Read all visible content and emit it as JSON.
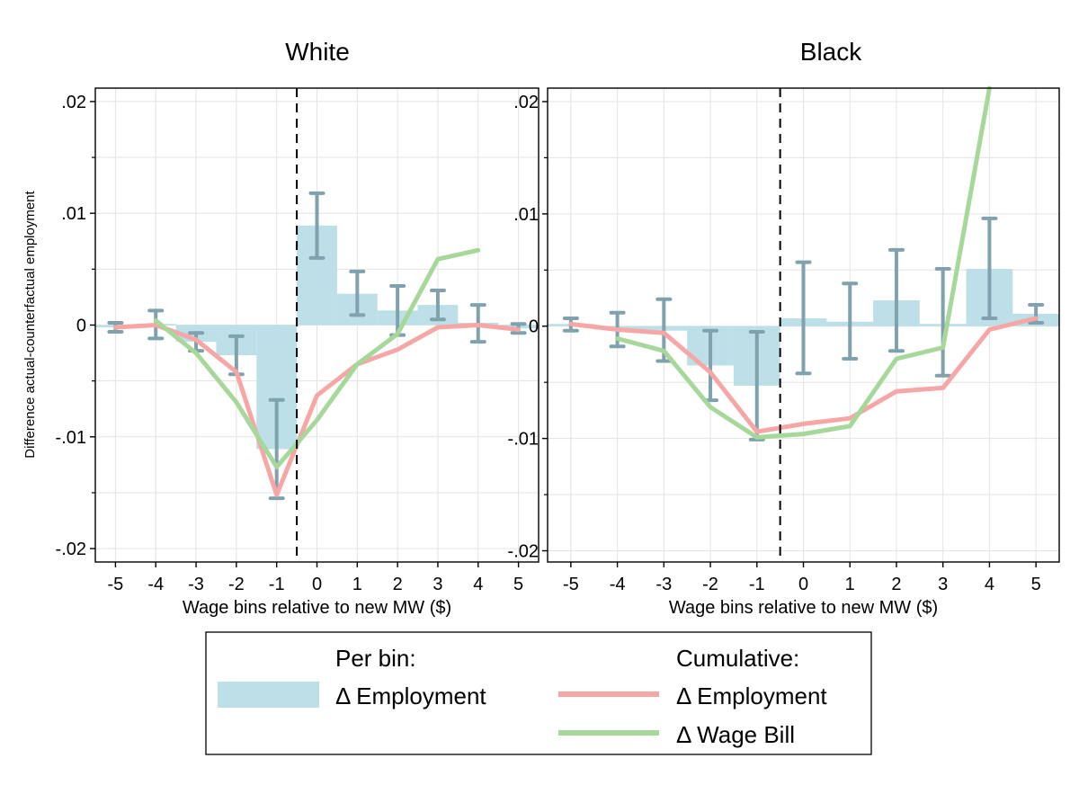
{
  "ylabel": "Difference actual-counterfactual employment",
  "colors": {
    "bar": "#bcdfe8",
    "ci": "#7fa2ae",
    "employment_line": "#f7a6a6",
    "wagebill_line": "#a6d89a",
    "grid": "#e3e3e3"
  },
  "legend": {
    "per_bin_title": "Per bin:",
    "per_bin_label": "Δ Employment",
    "cumulative_title": "Cumulative:",
    "cum_employment_label": "Δ Employment",
    "cum_wagebill_label": "Δ Wage Bill"
  },
  "chart_data": [
    {
      "type": "bar",
      "title": "White",
      "xlabel": "Wage bins relative to new MW ($)",
      "ylabel": "Difference actual-counterfactual employment",
      "x_ticks": [
        -5,
        -4,
        -3,
        -2,
        -1,
        0,
        1,
        2,
        3,
        4,
        5
      ],
      "y_ticks": [
        0.02,
        0.01,
        0,
        -0.01,
        -0.02
      ],
      "y_tick_labels": [
        ".02",
        ".01",
        "0",
        "-.01",
        "-.02"
      ],
      "xlim": [
        -5.5,
        5.5
      ],
      "ylim": [
        -0.0212,
        0.0212
      ],
      "vline_x": -0.5,
      "grid": true,
      "series": [
        {
          "name": "Per bin: Δ Employment",
          "kind": "bar",
          "x": [
            -5,
            -4,
            -3,
            -2,
            -1,
            0,
            1,
            2,
            3,
            4,
            5
          ],
          "values": [
            -0.0002,
            0.0001,
            -0.0015,
            -0.0027,
            -0.0111,
            0.0089,
            0.0028,
            0.0013,
            0.0018,
            0.0002,
            -0.0003
          ],
          "ci_low": [
            -0.0006,
            -0.0012,
            -0.0023,
            -0.0044,
            -0.0155,
            0.006,
            0.0009,
            -0.0009,
            0.0005,
            -0.0015,
            -0.0007
          ],
          "ci_high": [
            0.0002,
            0.0013,
            -0.0007,
            -0.001,
            -0.0067,
            0.0118,
            0.0048,
            0.0035,
            0.0031,
            0.0018,
            0.0001
          ]
        },
        {
          "name": "Cumulative: Δ Employment",
          "kind": "line",
          "x": [
            -5,
            -4,
            -3,
            -2,
            -1,
            0,
            1,
            2,
            3,
            4,
            5
          ],
          "values": [
            -0.0002,
            0,
            -0.0013,
            -0.0042,
            -0.0152,
            -0.0063,
            -0.0035,
            -0.0022,
            -0.0002,
            0,
            -0.0004
          ]
        },
        {
          "name": "Cumulative: Δ Wage Bill",
          "kind": "line",
          "x": [
            -4,
            -3,
            -2,
            -1,
            0,
            1,
            2,
            3,
            4
          ],
          "values": [
            0.0004,
            -0.0025,
            -0.0069,
            -0.0127,
            -0.0085,
            -0.0035,
            -0.0008,
            0.0059,
            0.0067
          ]
        }
      ]
    },
    {
      "type": "bar",
      "title": "Black",
      "xlabel": "Wage bins relative to new MW ($)",
      "x_ticks": [
        -5,
        -4,
        -3,
        -2,
        -1,
        0,
        1,
        2,
        3,
        4,
        5
      ],
      "y_ticks": [
        0.02,
        0.01,
        0,
        -0.01,
        -0.02
      ],
      "y_tick_labels": [
        ".02",
        ".01",
        "0",
        "-.01",
        "-.02"
      ],
      "xlim": [
        -5.5,
        5.5
      ],
      "ylim": [
        -0.021,
        0.0212
      ],
      "vline_x": -0.5,
      "grid": true,
      "series": [
        {
          "name": "Per bin: Δ Employment",
          "kind": "bar",
          "x": [
            -5,
            -4,
            -3,
            -2,
            -1,
            0,
            1,
            2,
            3,
            4,
            5
          ],
          "values": [
            0.0002,
            -0.0003,
            -0.0004,
            -0.0035,
            -0.0053,
            0.0007,
            0.0004,
            0.0023,
            0.0002,
            0.0051,
            0.0011
          ],
          "ci_low": [
            -0.0004,
            -0.0018,
            -0.0031,
            -0.0066,
            -0.0101,
            -0.0042,
            -0.0029,
            -0.0022,
            -0.0044,
            0.0007,
            0.0003
          ],
          "ci_high": [
            0.0007,
            0.0012,
            0.0024,
            -0.0004,
            -0.0005,
            0.0057,
            0.0038,
            0.0068,
            0.0051,
            0.0096,
            0.0019
          ]
        },
        {
          "name": "Cumulative: Δ Employment",
          "kind": "line",
          "x": [
            -5,
            -4,
            -3,
            -2,
            -1,
            0,
            1,
            2,
            3,
            4,
            5
          ],
          "values": [
            0.0002,
            -0.0003,
            -0.0006,
            -0.0041,
            -0.0094,
            -0.0087,
            -0.0082,
            -0.0058,
            -0.0055,
            -0.0003,
            0.0007
          ]
        },
        {
          "name": "Cumulative: Δ Wage Bill",
          "kind": "line",
          "x": [
            -4,
            -3,
            -2,
            -1,
            0,
            1,
            2,
            3,
            4
          ],
          "values": [
            -0.0011,
            -0.0022,
            -0.0072,
            -0.0099,
            -0.0096,
            -0.0089,
            -0.0029,
            -0.0019,
            0.0212
          ]
        }
      ]
    }
  ]
}
